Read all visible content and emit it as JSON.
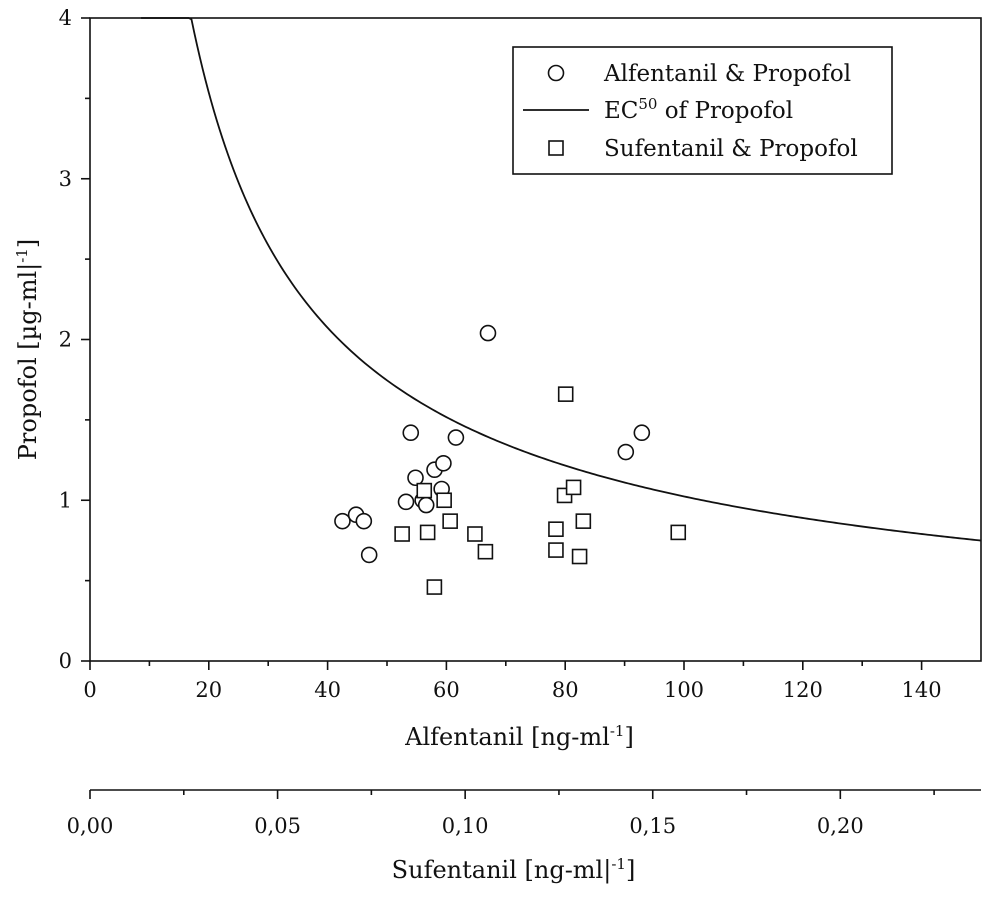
{
  "chart_data": {
    "type": "scatter",
    "title": "",
    "xlabel": "Alfentanil [ng-ml",
    "xlabel_sup": "-1",
    "xlabel_end": "]",
    "x2label": "Sufentanil [ng-ml|",
    "x2label_sup": "-1",
    "x2label_end": "]",
    "ylabel": "Propofol [µg-ml|",
    "ylabel_sup": "-1",
    "ylabel_end": "]",
    "xlim": [
      0,
      150
    ],
    "ylim": [
      0,
      4
    ],
    "x2lim": [
      0,
      0.2375
    ],
    "x_ticks": [
      "0",
      "20",
      "40",
      "60",
      "80",
      "100",
      "120",
      "140"
    ],
    "x_tick_values": [
      0,
      20,
      40,
      60,
      80,
      100,
      120,
      140
    ],
    "y_ticks": [
      "0",
      "1",
      "2",
      "3",
      "4"
    ],
    "y_tick_values": [
      0,
      1,
      2,
      3,
      4
    ],
    "x2_ticks": [
      "0,00",
      "0,05",
      "0,10",
      "0,15",
      "0,20"
    ],
    "x2_tick_values": [
      0,
      0.05,
      0.1,
      0.15,
      0.2
    ],
    "grid": false,
    "legend_position": "top-right",
    "legend": [
      {
        "label": "Alfentanil & Propofol",
        "marker": "circle"
      },
      {
        "label": "EC",
        "label_sup": "50",
        "label_end": " of Propofol",
        "marker": "line"
      },
      {
        "label": "Sufentanil & Propofol",
        "marker": "square"
      }
    ],
    "series": [
      {
        "name": "Alfentanil & Propofol",
        "marker": "circle",
        "points": [
          [
            42.5,
            0.87
          ],
          [
            44.8,
            0.91
          ],
          [
            46.1,
            0.87
          ],
          [
            47.0,
            0.66
          ],
          [
            53.2,
            0.99
          ],
          [
            54.0,
            1.42
          ],
          [
            54.8,
            1.14
          ],
          [
            56.0,
            1.0
          ],
          [
            56.6,
            0.97
          ],
          [
            58.0,
            1.19
          ],
          [
            59.2,
            1.07
          ],
          [
            59.5,
            1.23
          ],
          [
            61.6,
            1.39
          ],
          [
            67.0,
            2.04
          ],
          [
            90.2,
            1.3
          ],
          [
            92.9,
            1.42
          ]
        ]
      },
      {
        "name": "Sufentanil & Propofol",
        "marker": "square",
        "axis": "x2",
        "points": [
          [
            0.0832,
            0.79
          ],
          [
            0.0891,
            1.06
          ],
          [
            0.09,
            0.8
          ],
          [
            0.0918,
            0.46
          ],
          [
            0.0944,
            1.0
          ],
          [
            0.096,
            0.87
          ],
          [
            0.1026,
            0.79
          ],
          [
            0.1054,
            0.68
          ],
          [
            0.1242,
            0.82
          ],
          [
            0.1242,
            0.69
          ],
          [
            0.1265,
            1.03
          ],
          [
            0.1268,
            1.66
          ],
          [
            0.1289,
            1.08
          ],
          [
            0.1305,
            0.65
          ],
          [
            0.1315,
            0.87
          ],
          [
            0.1568,
            0.8
          ]
        ]
      },
      {
        "name": "EC50 of Propofol",
        "type": "line",
        "model": "y = 35.5 / x^0.77",
        "x_range": [
          8.6,
          150
        ]
      }
    ],
    "colors": {
      "ink": "#111111",
      "background": "#ffffff"
    }
  }
}
